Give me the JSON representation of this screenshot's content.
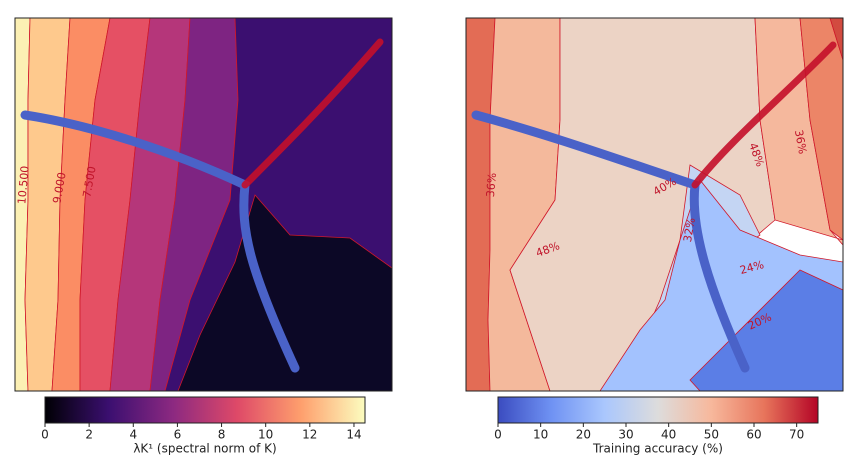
{
  "chart_data": [
    {
      "type": "contour",
      "colorbar_label": "λK¹ (spectral norm of K)",
      "clim": [
        0,
        14.5
      ],
      "cticks": [
        0,
        2,
        4,
        6,
        8,
        10,
        12,
        14
      ],
      "colormap": [
        "#000004",
        "#3b0f70",
        "#8c2981",
        "#de4968",
        "#fe9f6d",
        "#fcfdbf"
      ],
      "bands": [
        {
          "color": "#fcf0b4"
        },
        {
          "color": "#fec98d"
        },
        {
          "color": "#fb8d64"
        },
        {
          "color": "#e55064"
        },
        {
          "color": "#b5367a"
        },
        {
          "color": "#7e2482"
        },
        {
          "color": "#3b0f70"
        },
        {
          "color": "#0c0826"
        }
      ],
      "contour_labels": [
        {
          "value": 10.5,
          "label": "10.500"
        },
        {
          "value": 9,
          "label": "9.000"
        },
        {
          "value": 7.5,
          "label": "7.500"
        }
      ]
    },
    {
      "type": "contour",
      "colorbar_label": "Training accuracy (%)",
      "clim": [
        0,
        75
      ],
      "cticks": [
        0,
        10,
        20,
        30,
        40,
        50,
        60,
        70
      ],
      "colormap": [
        "#3b4cc0",
        "#6f92f3",
        "#aac7fd",
        "#dddcdc",
        "#f7b89c",
        "#e7745b",
        "#b40426"
      ],
      "bands": [
        {
          "color": "#e36c55"
        },
        {
          "color": "#f4b99c"
        },
        {
          "color": "#ecd3c5"
        },
        {
          "color": "#f5b89d"
        },
        {
          "color": "#ec8567"
        },
        {
          "color": "#d24b40"
        },
        {
          "color": "#c4d5f3"
        },
        {
          "color": "#a3c2fe"
        },
        {
          "color": "#5b7ee6"
        }
      ],
      "contour_labels": [
        {
          "value": 36,
          "label": "36%"
        },
        {
          "value": 48,
          "label": "48%"
        },
        {
          "value": 40,
          "label": "40%"
        },
        {
          "value": 48,
          "label": "48%"
        },
        {
          "value": 36,
          "label": "36%"
        },
        {
          "value": 32,
          "label": "32%"
        },
        {
          "value": 24,
          "label": "24%"
        },
        {
          "value": 20,
          "label": "20%"
        }
      ]
    }
  ]
}
